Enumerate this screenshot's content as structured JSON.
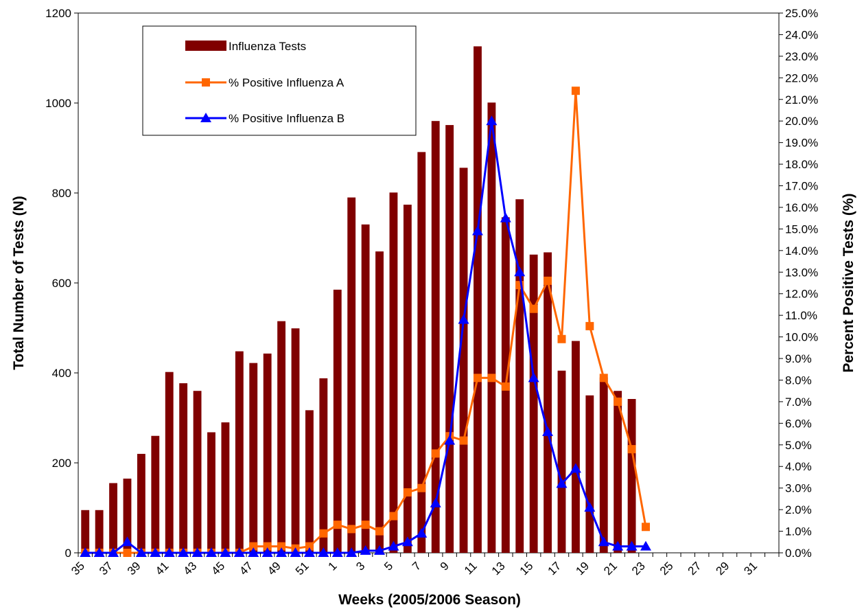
{
  "chart_data": {
    "type": "bar",
    "title": "",
    "xlabel": "Weeks (2005/2006 Season)",
    "ylabel_left": "Total Number of Tests (N)",
    "ylabel_right": "Percent Positive Tests (%)",
    "ylim_left": [
      0,
      1200
    ],
    "ylim_right": [
      0,
      25
    ],
    "left_ticks": [
      "0",
      "200",
      "400",
      "600",
      "800",
      "1000",
      "1200"
    ],
    "right_ticks": [
      "0.0%",
      "1.0%",
      "2.0%",
      "3.0%",
      "4.0%",
      "5.0%",
      "6.0%",
      "7.0%",
      "8.0%",
      "9.0%",
      "10.0%",
      "11.0%",
      "12.0%",
      "13.0%",
      "14.0%",
      "15.0%",
      "16.0%",
      "17.0%",
      "18.0%",
      "19.0%",
      "20.0%",
      "21.0%",
      "22.0%",
      "23.0%",
      "24.0%",
      "25.0%"
    ],
    "categories": [
      "35",
      "36",
      "37",
      "38",
      "39",
      "40",
      "41",
      "42",
      "43",
      "44",
      "45",
      "46",
      "47",
      "48",
      "49",
      "50",
      "51",
      "52",
      "1",
      "2",
      "3",
      "4",
      "5",
      "6",
      "7",
      "8",
      "9",
      "10",
      "11",
      "12",
      "13",
      "14",
      "15",
      "16",
      "17",
      "18",
      "19",
      "20",
      "21",
      "22",
      "23",
      "24",
      "25",
      "26",
      "27",
      "28",
      "29",
      "30",
      "31",
      "32"
    ],
    "x_tick_labels": [
      "35",
      "37",
      "39",
      "41",
      "43",
      "45",
      "47",
      "49",
      "51",
      "1",
      "3",
      "5",
      "7",
      "9",
      "11",
      "13",
      "15",
      "17",
      "19",
      "21",
      "23",
      "25",
      "27",
      "29",
      "31"
    ],
    "legend_position": "top-left",
    "series": [
      {
        "name": "Influenza Tests",
        "type": "bar",
        "axis": "left",
        "color": "#800000",
        "values": [
          95,
          95,
          155,
          165,
          220,
          260,
          402,
          377,
          360,
          268,
          290,
          448,
          422,
          443,
          515,
          499,
          317,
          388,
          585,
          790,
          730,
          670,
          801,
          774,
          891,
          960,
          951,
          856,
          1126,
          1001,
          746,
          786,
          663,
          668,
          405,
          471,
          350,
          390,
          360,
          342,
          null,
          null,
          null,
          null,
          null,
          null,
          null,
          null,
          null,
          null
        ]
      },
      {
        "name": "% Positive Influenza A",
        "type": "line",
        "axis": "right",
        "color": "#ff6600",
        "marker": "square",
        "values": [
          0,
          0,
          0,
          0,
          0,
          0,
          0,
          0,
          0,
          0,
          0,
          0,
          0.3,
          0.3,
          0.3,
          0.2,
          0.3,
          0.9,
          1.3,
          1.1,
          1.3,
          1.0,
          1.7,
          2.8,
          3.0,
          4.6,
          5.4,
          5.2,
          8.1,
          8.1,
          7.7,
          12.4,
          11.3,
          12.6,
          9.9,
          21.4,
          10.5,
          8.1,
          7.0,
          4.8,
          1.2,
          null,
          null,
          null,
          null,
          null,
          null,
          null,
          null,
          null
        ]
      },
      {
        "name": "% Positive Influenza B",
        "type": "line",
        "axis": "right",
        "color": "#0000ff",
        "marker": "triangle",
        "values": [
          0,
          0,
          0,
          0.5,
          0,
          0,
          0,
          0,
          0,
          0,
          0,
          0,
          0,
          0,
          0,
          0,
          0,
          0,
          0,
          0,
          0.1,
          0.1,
          0.3,
          0.5,
          0.9,
          2.3,
          5.2,
          10.8,
          14.9,
          20.0,
          15.5,
          13.0,
          8.1,
          5.6,
          3.2,
          3.9,
          2.1,
          0.5,
          0.3,
          0.3,
          0.3,
          null,
          null,
          null,
          null,
          null,
          null,
          null,
          null,
          null
        ]
      }
    ]
  }
}
